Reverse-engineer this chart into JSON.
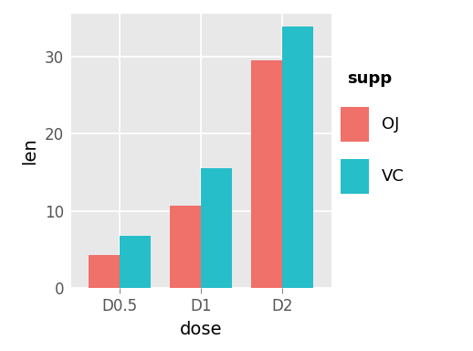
{
  "categories": [
    "D0.5",
    "D1",
    "D2"
  ],
  "OJ": [
    4.2,
    10.6,
    29.5
  ],
  "VC": [
    6.8,
    15.5,
    33.9
  ],
  "color_OJ": "#F0706A",
  "color_VC": "#26BEC9",
  "xlabel": "dose",
  "ylabel": "len",
  "legend_title": "supp",
  "legend_labels": [
    "OJ",
    "VC"
  ],
  "yticks": [
    0,
    10,
    20,
    30
  ],
  "ylim": [
    0,
    35.5
  ],
  "bg_panel": "#E8E8E8",
  "bg_figure": "#FFFFFF",
  "grid_color": "#FFFFFF",
  "bar_width": 0.38
}
